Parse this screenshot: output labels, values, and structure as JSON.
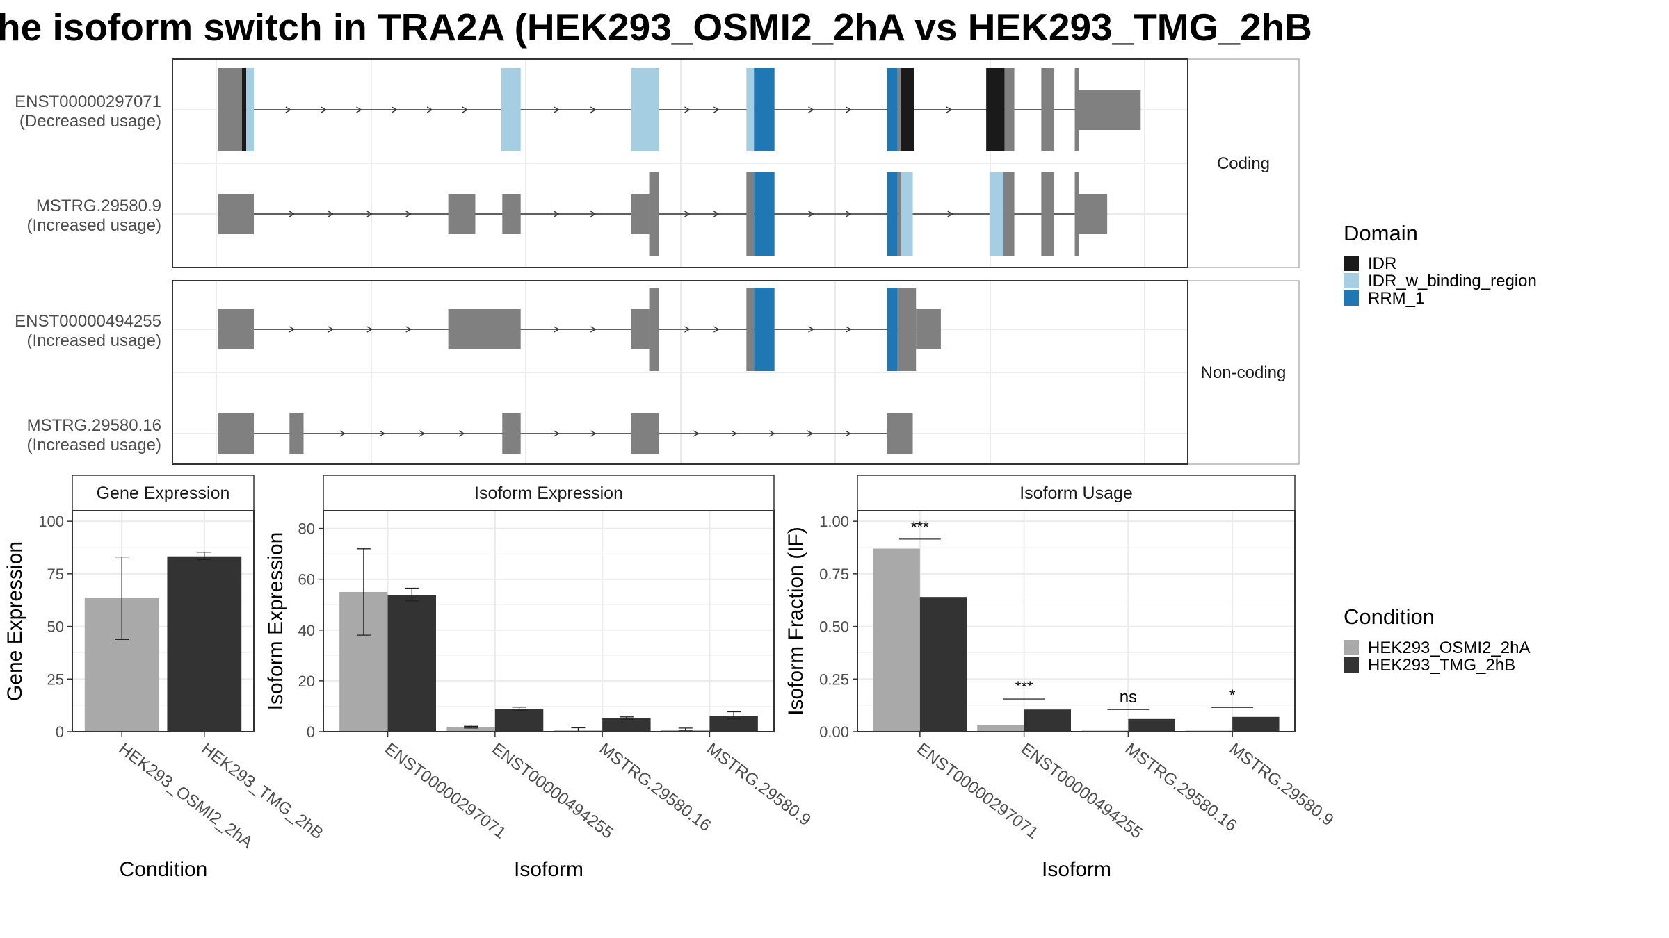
{
  "title": "he isoform switch in TRA2A (HEK293_OSMI2_2hA vs HEK293_TMG_2hB",
  "colors": {
    "IDR": "#1a1a1a",
    "IDR_w_binding_region": "#a6cee3",
    "RRM_1": "#1f78b4",
    "exon": "#808080",
    "HEK293_OSMI2_2hA": "#a9a9a9",
    "HEK293_TMG_2hB": "#333333"
  },
  "isoform_structure": {
    "panels": [
      {
        "label": "Coding",
        "transcripts": [
          {
            "id": "ENST00000297071",
            "usage": "(Decreased usage)",
            "exons": [
              [
                202,
                224,
                "n"
              ],
              [
                224,
                228,
                "IDR"
              ],
              [
                228,
                235,
                "IDR_w_binding_region"
              ],
              [
                464,
                482,
                "IDR_w_binding_region"
              ],
              [
                584,
                610,
                "IDR_w_binding_region"
              ],
              [
                691,
                698,
                "IDR_w_binding_region"
              ],
              [
                698,
                717,
                "RRM_1"
              ],
              [
                821,
                831,
                "RRM_1"
              ],
              [
                831,
                834,
                "n"
              ],
              [
                834,
                846,
                "IDR"
              ],
              [
                913,
                930,
                "IDR"
              ],
              [
                930,
                939,
                "n"
              ],
              [
                964,
                976,
                "n"
              ],
              [
                995,
                999,
                "n"
              ],
              [
                999,
                1056,
                "n",
                "utr"
              ]
            ]
          },
          {
            "id": "MSTRG.29580.9",
            "usage": "(Increased usage)",
            "exons": [
              [
                202,
                235,
                "n",
                "utr"
              ],
              [
                415,
                440,
                "n",
                "utr"
              ],
              [
                465,
                482,
                "n",
                "utr"
              ],
              [
                584,
                601,
                "n",
                "utr"
              ],
              [
                601,
                610,
                "n"
              ],
              [
                691,
                698,
                "n"
              ],
              [
                698,
                717,
                "RRM_1"
              ],
              [
                821,
                831,
                "RRM_1"
              ],
              [
                831,
                834,
                "n"
              ],
              [
                834,
                845,
                "IDR_w_binding_region"
              ],
              [
                916,
                929,
                "IDR_w_binding_region"
              ],
              [
                929,
                939,
                "n"
              ],
              [
                964,
                976,
                "n"
              ],
              [
                995,
                999,
                "n"
              ],
              [
                999,
                1025,
                "n",
                "utr"
              ]
            ]
          }
        ]
      },
      {
        "label": "Non-coding",
        "transcripts": [
          {
            "id": "ENST00000494255",
            "usage": "(Increased usage)",
            "exons": [
              [
                202,
                235,
                "n",
                "utr"
              ],
              [
                415,
                482,
                "n",
                "utr"
              ],
              [
                584,
                601,
                "n",
                "utr"
              ],
              [
                601,
                610,
                "n"
              ],
              [
                691,
                698,
                "n"
              ],
              [
                698,
                717,
                "RRM_1"
              ],
              [
                821,
                831,
                "RRM_1"
              ],
              [
                831,
                848,
                "n"
              ],
              [
                848,
                871,
                "n",
                "utr"
              ]
            ]
          },
          {
            "id": "MSTRG.29580.16",
            "usage": "(Increased usage)",
            "exons": [
              [
                202,
                235,
                "n",
                "utr"
              ],
              [
                268,
                281,
                "n",
                "utr"
              ],
              [
                465,
                482,
                "n",
                "utr"
              ],
              [
                584,
                610,
                "n",
                "utr"
              ],
              [
                821,
                845,
                "n",
                "utr"
              ]
            ]
          }
        ]
      }
    ]
  },
  "legends": {
    "domain": {
      "title": "Domain",
      "items": [
        "IDR",
        "IDR_w_binding_region",
        "RRM_1"
      ]
    },
    "condition": {
      "title": "Condition",
      "items": [
        "HEK293_OSMI2_2hA",
        "HEK293_TMG_2hB"
      ]
    }
  },
  "chart_data": [
    {
      "type": "bar",
      "title": "Gene Expression",
      "xlabel": "Condition",
      "ylabel": "Gene Expression",
      "ylim": [
        0,
        105
      ],
      "yticks": [
        0,
        25,
        50,
        75,
        100
      ],
      "categories": [
        "HEK293_OSMI2_2hA",
        "HEK293_TMG_2hB"
      ],
      "series": [
        {
          "name": "HEK293_OSMI2_2hA",
          "values": [
            63.5,
            null
          ],
          "err_low": [
            43.8,
            null
          ],
          "err_high": [
            83,
            null
          ]
        },
        {
          "name": "HEK293_TMG_2hB",
          "values": [
            null,
            83.3
          ],
          "err_low": [
            null,
            81.7
          ],
          "err_high": [
            null,
            85.3
          ]
        }
      ]
    },
    {
      "type": "bar",
      "title": "Isoform Expression",
      "xlabel": "Isoform",
      "ylabel": "Isoform Expression",
      "ylim": [
        0,
        87
      ],
      "yticks": [
        0,
        20,
        40,
        60,
        80
      ],
      "categories": [
        "ENST00000297071",
        "ENST00000494255",
        "MSTRG.29580.16",
        "MSTRG.29580.9"
      ],
      "series": [
        {
          "name": "HEK293_OSMI2_2hA",
          "values": [
            55,
            1.8,
            0.5,
            0.7
          ],
          "err_low": [
            38,
            1.4,
            0.1,
            0.3
          ],
          "err_high": [
            72,
            2.1,
            1.5,
            1.4
          ]
        },
        {
          "name": "HEK293_TMG_2hB",
          "values": [
            53.8,
            8.9,
            5.4,
            6.1
          ],
          "err_low": [
            51.5,
            8.4,
            4.9,
            5
          ],
          "err_high": [
            56.5,
            9.6,
            5.8,
            7.8
          ]
        }
      ]
    },
    {
      "type": "bar",
      "title": "Isoform Usage",
      "xlabel": "Isoform",
      "ylabel": "Isoform Fraction (IF)",
      "ylim": [
        0,
        1.05
      ],
      "yticks": [
        "0.00",
        "0.25",
        "0.50",
        "0.75",
        "1.00"
      ],
      "categories": [
        "ENST00000297071",
        "ENST00000494255",
        "MSTRG.29580.16",
        "MSTRG.29580.9"
      ],
      "series": [
        {
          "name": "HEK293_OSMI2_2hA",
          "values": [
            0.87,
            0.03,
            0.005,
            0.005
          ]
        },
        {
          "name": "HEK293_TMG_2hB",
          "values": [
            0.64,
            0.105,
            0.06,
            0.07
          ]
        }
      ],
      "significance": [
        "***",
        "***",
        "ns",
        "*"
      ],
      "significance_y": [
        0.915,
        0.155,
        0.105,
        0.115
      ]
    }
  ]
}
